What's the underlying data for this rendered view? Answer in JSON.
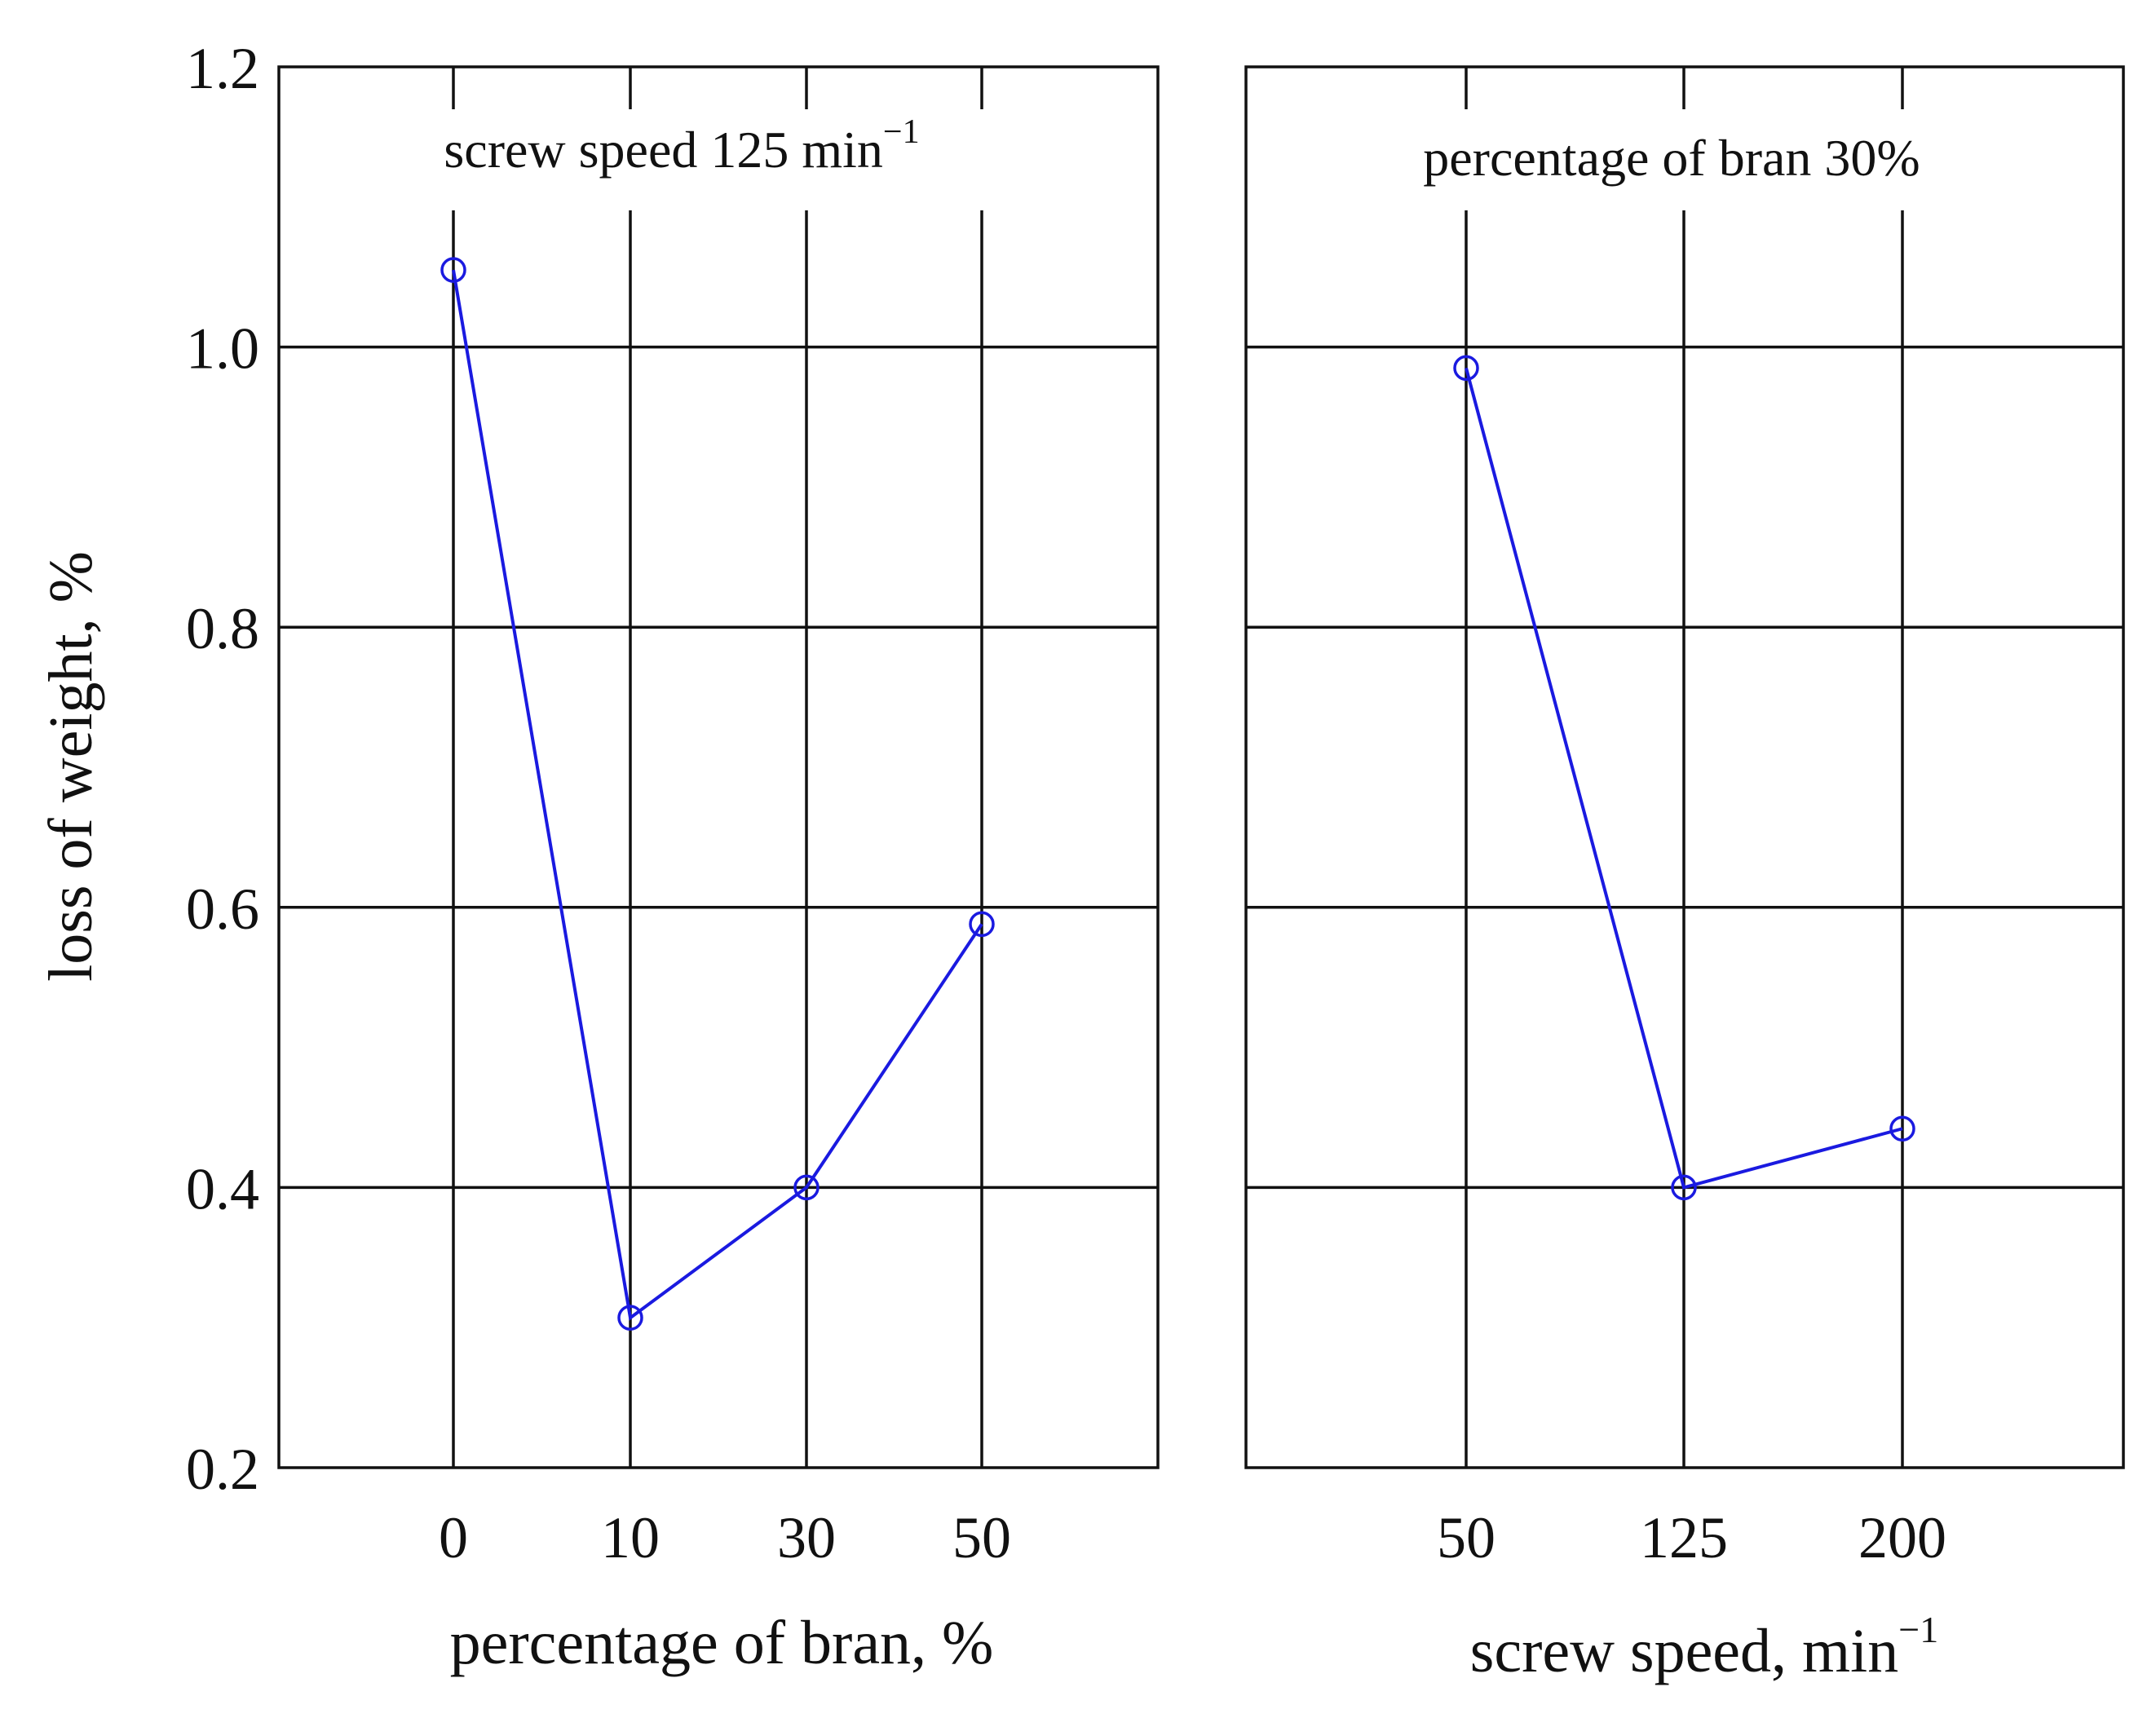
{
  "chart_data": [
    {
      "type": "line",
      "annotation": "screw speed 125 min",
      "annotation_sup": "−1",
      "xlabel": "percentage of bran, %",
      "xlabel_sup": "",
      "ylabel": "loss of weight, %",
      "categories": [
        "0",
        "10",
        "30",
        "50"
      ],
      "series": [
        {
          "name": "loss of weight",
          "values": [
            1.055,
            0.307,
            0.4,
            0.588
          ]
        }
      ],
      "ylim": [
        0.2,
        1.2
      ],
      "yticks": [
        "0.2",
        "0.4",
        "0.6",
        "0.8",
        "1.0",
        "1.2"
      ],
      "grid": true
    },
    {
      "type": "line",
      "annotation": "percentage of bran 30%",
      "annotation_sup": "",
      "xlabel": "screw speed, min",
      "xlabel_sup": "−1",
      "ylabel": "",
      "categories": [
        "50",
        "125",
        "200"
      ],
      "series": [
        {
          "name": "loss of weight",
          "values": [
            0.985,
            0.4,
            0.442
          ]
        }
      ],
      "ylim": [
        0.2,
        1.2
      ],
      "yticks": [],
      "grid": true
    }
  ],
  "colors": {
    "series": "#1a1ae0",
    "axes": "#111111"
  }
}
